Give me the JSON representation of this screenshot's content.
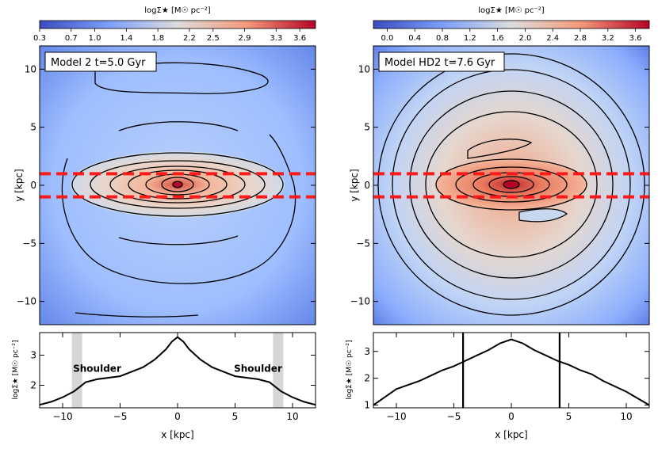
{
  "chart_data": [
    {
      "type": "heatmap",
      "panel": "left-top",
      "model_label": "Model 2 t=5.0 Gyr",
      "colorbar_label": "logΣ★ [M☉ pc⁻²]",
      "colorbar_ticks": [
        "0.3",
        "0.7",
        "1.0",
        "1.4",
        "1.8",
        "2.2",
        "2.5",
        "2.9",
        "3.3",
        "3.6"
      ],
      "colorbar_range": [
        0.3,
        3.8
      ],
      "xlim": [
        -12,
        12
      ],
      "ylim": [
        -12,
        12
      ],
      "ylabel": "y [kpc]",
      "y_ticks": [
        -10,
        -5,
        0,
        5,
        10
      ],
      "slit_lines_y": [
        -1,
        1
      ],
      "contour_levels": [
        1.4,
        1.8,
        2.2,
        2.5,
        2.9,
        3.3,
        3.6
      ]
    },
    {
      "type": "line",
      "panel": "left-bottom",
      "xlabel": "x [kpc]",
      "ylabel": "logΣ★ [M☉ pc⁻²]",
      "xlim": [
        -12,
        12
      ],
      "ylim": [
        1.25,
        3.75
      ],
      "x_ticks": [
        -10,
        -5,
        0,
        5,
        10
      ],
      "y_ticks": [
        2,
        3
      ],
      "x": [
        -12,
        -11,
        -10,
        -9,
        -8.5,
        -8,
        -7,
        -6,
        -5,
        -4,
        -3,
        -2,
        -1,
        -0.5,
        0,
        0.5,
        1,
        2,
        3,
        4,
        5,
        6,
        7,
        8,
        8.5,
        9,
        10,
        11,
        12
      ],
      "values": [
        1.35,
        1.45,
        1.6,
        1.8,
        1.95,
        2.1,
        2.2,
        2.25,
        2.3,
        2.45,
        2.6,
        2.85,
        3.2,
        3.45,
        3.6,
        3.45,
        3.2,
        2.85,
        2.6,
        2.45,
        2.3,
        2.25,
        2.2,
        2.1,
        1.95,
        1.8,
        1.6,
        1.45,
        1.35
      ],
      "shaded_bands": [
        [
          -9.2,
          -8.3
        ],
        [
          8.3,
          9.2
        ]
      ],
      "annotations": [
        "Shoulder",
        "Shoulder"
      ]
    },
    {
      "type": "heatmap",
      "panel": "right-top",
      "model_label": "Model HD2 t=7.6 Gyr",
      "colorbar_label": "logΣ★ [M☉ pc⁻²]",
      "colorbar_ticks": [
        "0.0",
        "0.4",
        "0.8",
        "1.2",
        "1.6",
        "2.0",
        "2.4",
        "2.8",
        "3.2",
        "3.6"
      ],
      "colorbar_range": [
        -0.2,
        3.8
      ],
      "xlim": [
        -12,
        12
      ],
      "ylim": [
        -12,
        12
      ],
      "ylabel": "y [kpc]",
      "y_ticks": [
        -10,
        -5,
        0,
        5,
        10
      ],
      "slit_lines_y": [
        -1,
        1
      ],
      "contour_levels": [
        1.2,
        1.6,
        2.0,
        2.4,
        2.8,
        3.2,
        3.6
      ]
    },
    {
      "type": "line",
      "panel": "right-bottom",
      "xlabel": "x [kpc]",
      "ylabel": "logΣ★ [M☉ pc⁻²]",
      "xlim": [
        -12,
        12
      ],
      "ylim": [
        0.9,
        3.7
      ],
      "x_ticks": [
        -10,
        -5,
        0,
        5,
        10
      ],
      "y_ticks": [
        1,
        2,
        3
      ],
      "x": [
        -12,
        -11,
        -10,
        -9,
        -8,
        -7,
        -6,
        -5,
        -4,
        -3,
        -2,
        -1,
        0,
        1,
        2,
        3,
        4,
        5,
        6,
        7,
        8,
        9,
        10,
        11,
        12
      ],
      "values": [
        1.0,
        1.3,
        1.6,
        1.75,
        1.9,
        2.1,
        2.3,
        2.45,
        2.65,
        2.85,
        3.05,
        3.3,
        3.45,
        3.3,
        3.05,
        2.85,
        2.65,
        2.5,
        2.3,
        2.15,
        1.9,
        1.7,
        1.5,
        1.25,
        1.0
      ],
      "vertical_lines_x": [
        -4.2,
        4.2
      ]
    }
  ]
}
